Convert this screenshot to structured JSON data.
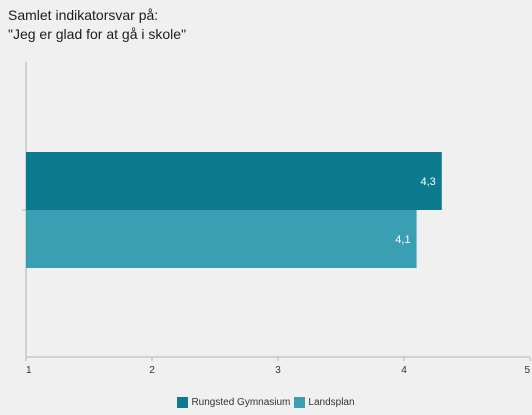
{
  "chart_data": {
    "type": "bar",
    "orientation": "horizontal",
    "title_lines": [
      "Samlet indikatorsvar på:",
      "\"Jeg er glad for at gå i skole\""
    ],
    "categories": [
      ""
    ],
    "series": [
      {
        "name": "Rungsted Gymnasium",
        "values": [
          4.3
        ],
        "labels": [
          "4,3"
        ],
        "color": "#0c7a8f"
      },
      {
        "name": "Landsplan",
        "values": [
          4.1
        ],
        "labels": [
          "4,1"
        ],
        "color": "#3a9fb3"
      }
    ],
    "xlim": [
      1,
      5
    ],
    "xticks": [
      1,
      2,
      3,
      4,
      5
    ],
    "xtick_labels": [
      "1",
      "2",
      "3",
      "4",
      "5"
    ],
    "legend_position": "bottom",
    "grid": false
  }
}
